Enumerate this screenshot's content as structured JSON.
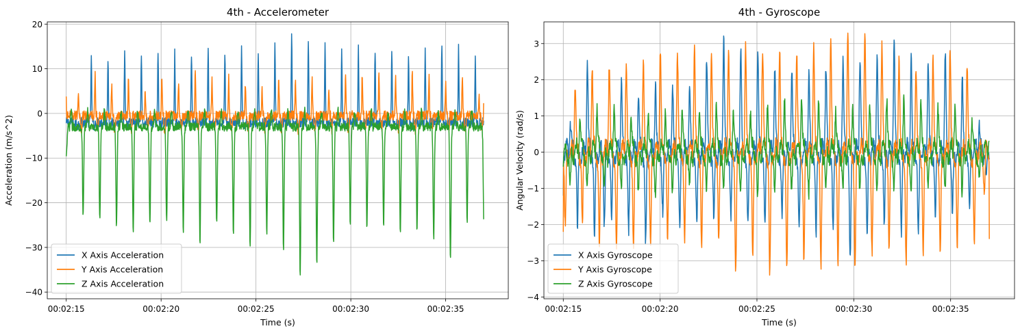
{
  "chart_data": [
    {
      "type": "line",
      "title": "4th - Accelerometer",
      "xlabel": "Time (s)",
      "ylabel": "Acceleration (m/s^2)",
      "xlim": [
        134.0,
        158.3
      ],
      "ylim": [
        -41.5,
        20.5
      ],
      "grid": true,
      "legend_position": "lower-left",
      "x_ticks": [
        135,
        140,
        145,
        150,
        155
      ],
      "x_tick_labels": [
        "00:02:15",
        "00:02:20",
        "00:02:25",
        "00:02:30",
        "00:02:35"
      ],
      "y_ticks": [
        -40,
        -30,
        -20,
        -10,
        0,
        10,
        20
      ],
      "y_tick_labels": [
        "−40",
        "−30",
        "−20",
        "−10",
        "0",
        "10",
        "20"
      ],
      "x_range": [
        135.0,
        157.0
      ],
      "series": [
        {
          "name": "X Axis Acceleration",
          "color": "#1f77b4",
          "x": [
            135.0,
            135.5,
            135.9,
            136.3,
            137.2,
            138.0,
            139.0,
            140.0,
            141.0,
            142.0,
            143.0,
            144.0,
            145.0,
            146.0,
            146.9,
            148.0,
            149.0,
            150.0,
            151.0,
            152.0,
            153.0,
            154.0,
            155.0,
            156.0,
            156.6,
            157.0
          ],
          "y": [
            -2.2,
            -3.6,
            6.1,
            12.3,
            12.5,
            14.0,
            13.6,
            13.6,
            13.5,
            13.8,
            13.8,
            14.2,
            14.2,
            14.8,
            17.6,
            16.6,
            14.2,
            14.6,
            14.1,
            14.1,
            13.6,
            13.9,
            16.4,
            13.5,
            12.1,
            -1.6
          ],
          "base": -2.0,
          "period_s": 0.88,
          "phase_s": 0.0,
          "trough": -3.5
        },
        {
          "name": "Y Axis Acceleration",
          "color": "#ff7f0e",
          "x": [
            135.0,
            135.3,
            135.7,
            136.2,
            137.0,
            138.0,
            139.0,
            140.0,
            141.0,
            142.0,
            143.0,
            144.0,
            145.0,
            146.0,
            147.0,
            148.0,
            149.0,
            150.0,
            151.0,
            152.0,
            153.0,
            154.0,
            155.0,
            156.0,
            157.0
          ],
          "y": [
            3.8,
            4.4,
            5.3,
            11.8,
            4.0,
            10.0,
            4.0,
            8.5,
            6.5,
            9.5,
            7.0,
            8.6,
            5.0,
            9.0,
            7.0,
            7.9,
            5.2,
            9.5,
            8.0,
            8.7,
            9.3,
            8.4,
            6.9,
            8.3,
            2.3
          ],
          "base": -0.5,
          "period_s": 0.88,
          "phase_s": 0.2,
          "trough": -7.0
        },
        {
          "name": "Z Axis Acceleration",
          "color": "#2ca02c",
          "x": [
            135.0,
            135.5,
            136.0,
            136.3,
            137.0,
            138.0,
            139.0,
            140.0,
            141.0,
            142.0,
            143.0,
            144.0,
            145.0,
            146.0,
            147.0,
            148.0,
            149.0,
            150.0,
            151.0,
            152.0,
            153.0,
            154.0,
            155.0,
            156.0,
            156.6
          ],
          "y": [
            -9.6,
            -15.4,
            -25.5,
            -22.0,
            -25.0,
            -25.8,
            -26.0,
            -24.0,
            -25.7,
            -29.0,
            -25.0,
            -26.9,
            -31.7,
            -24.0,
            -38.6,
            -35.1,
            -29.0,
            -24.5,
            -26.0,
            -24.5,
            -29.0,
            -24.0,
            -35.1,
            -25.0,
            -23.7
          ],
          "base": -3.0,
          "period_s": 0.88,
          "phase_s": 0.45,
          "peak": 0.5
        }
      ]
    },
    {
      "type": "line",
      "title": "4th - Gyroscope",
      "xlabel": "Time (s)",
      "ylabel": "Angular Velocity (rad/s)",
      "xlim": [
        134.0,
        158.3
      ],
      "ylim": [
        -4.05,
        3.6
      ],
      "grid": true,
      "legend_position": "lower-left",
      "x_ticks": [
        135,
        140,
        145,
        150,
        155
      ],
      "x_tick_labels": [
        "00:02:15",
        "00:02:20",
        "00:02:25",
        "00:02:30",
        "00:02:35"
      ],
      "y_ticks": [
        -4,
        -3,
        -2,
        -1,
        0,
        1,
        2,
        3
      ],
      "y_tick_labels": [
        "−4",
        "−3",
        "−2",
        "−1",
        "0",
        "1",
        "2",
        "3"
      ],
      "x_range": [
        135.0,
        157.0
      ],
      "series": [
        {
          "name": "X Axis Gyroscope",
          "color": "#1f77b4",
          "x": [
            135.0,
            135.5,
            136.3,
            137.0,
            138.0,
            139.0,
            140.0,
            141.0,
            142.0,
            143.0,
            144.0,
            145.0,
            146.0,
            147.0,
            148.0,
            149.0,
            150.0,
            151.0,
            152.0,
            153.0,
            154.0,
            155.0,
            156.0,
            157.0
          ],
          "y": [
            -1.2,
            1.5,
            2.5,
            -2.6,
            2.0,
            1.4,
            2.0,
            1.7,
            2.2,
            3.3,
            2.9,
            2.9,
            2.3,
            2.3,
            2.2,
            2.5,
            2.6,
            2.5,
            3.1,
            2.6,
            2.5,
            2.8,
            1.6,
            -0.2
          ],
          "troughs": [
            -1.5,
            -1.8,
            -2.5,
            -2.0,
            -1.8,
            -2.8,
            -1.6,
            -2.0,
            -2.0,
            -1.8,
            -1.9,
            -2.0,
            -1.8,
            -2.0,
            -2.3,
            -2.1,
            -3.2,
            -2.0,
            -1.9,
            -2.6,
            -1.8,
            -1.7,
            -1.5,
            -0.5
          ],
          "period_s": 0.88,
          "phase_s": 0.1
        },
        {
          "name": "Y Axis Gyroscope",
          "color": "#ff7f0e",
          "x": [
            135.0,
            135.5,
            136.5,
            137.0,
            138.0,
            139.0,
            140.0,
            141.0,
            142.0,
            143.0,
            144.0,
            145.0,
            146.0,
            147.0,
            148.0,
            149.0,
            150.0,
            151.0,
            152.0,
            153.0,
            154.0,
            155.0,
            156.0,
            157.0
          ],
          "y": [
            -2.2,
            1.7,
            2.3,
            2.4,
            2.3,
            2.5,
            2.8,
            2.8,
            2.9,
            2.7,
            3.1,
            2.8,
            2.9,
            2.8,
            3.0,
            3.1,
            3.3,
            3.2,
            2.7,
            2.3,
            2.6,
            2.8,
            2.4,
            -2.4
          ],
          "troughs": [
            -2.2,
            -1.5,
            -2.5,
            -2.5,
            -2.7,
            -2.6,
            -2.4,
            -2.4,
            -2.6,
            -2.4,
            -3.4,
            -2.8,
            -3.7,
            -2.7,
            -3.2,
            -3.0,
            -3.1,
            -2.8,
            -2.6,
            -3.3,
            -2.7,
            -2.8,
            -2.5,
            -2.4
          ],
          "period_s": 0.88,
          "phase_s": 0.35
        },
        {
          "name": "Z Axis Gyroscope",
          "color": "#2ca02c",
          "x": [
            135.0,
            135.5,
            136.5,
            137.0,
            138.0,
            139.0,
            140.0,
            141.0,
            142.0,
            143.0,
            144.0,
            145.0,
            146.0,
            147.0,
            148.0,
            149.0,
            150.0,
            151.0,
            152.0,
            153.0,
            154.0,
            155.0,
            156.0,
            157.0
          ],
          "y": [
            -0.4,
            1.0,
            1.1,
            1.3,
            1.1,
            1.0,
            1.0,
            1.1,
            1.2,
            1.3,
            1.1,
            1.2,
            1.3,
            1.6,
            1.5,
            1.1,
            1.2,
            1.3,
            1.5,
            1.4,
            1.3,
            1.2,
            1.0,
            0.3
          ],
          "troughs": [
            -0.4,
            -1.0,
            -1.0,
            -0.9,
            -1.0,
            -1.1,
            -1.2,
            -1.0,
            -0.9,
            -1.0,
            -1.1,
            -1.2,
            -1.0,
            -1.1,
            -1.2,
            -1.1,
            -1.0,
            -1.2,
            -1.0,
            -1.1,
            -1.0,
            -1.1,
            -1.2,
            -0.3
          ],
          "period_s": 0.88,
          "phase_s": 0.6
        }
      ]
    }
  ]
}
